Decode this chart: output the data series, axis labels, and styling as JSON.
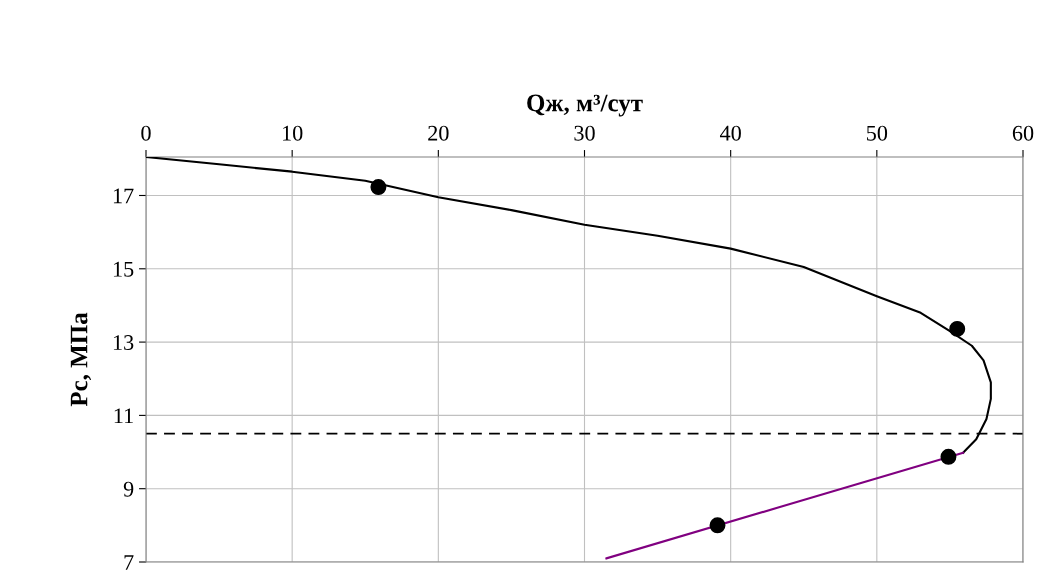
{
  "chart_data": {
    "type": "line",
    "xlabel": "Qж, м³/сут",
    "ylabel": "Pс, МПа",
    "xlim": [
      0,
      60
    ],
    "xticks": [
      0,
      10,
      20,
      30,
      40,
      50,
      60
    ],
    "ylim": [
      7,
      18.05
    ],
    "yticks": [
      7,
      9,
      11,
      13,
      15,
      17
    ],
    "grid": true,
    "marker": "none",
    "line_style": "solid",
    "legend": false,
    "series": [
      {
        "color": "#000000",
        "x": [
          0,
          5,
          10,
          15,
          20,
          25,
          30,
          35,
          40,
          45,
          50,
          53,
          55,
          56.5,
          57.3,
          57.8,
          57.8,
          57.5,
          56.8,
          55.9
        ],
        "values": [
          18.05,
          17.85,
          17.65,
          17.4,
          16.95,
          16.6,
          16.2,
          15.9,
          15.55,
          15.05,
          14.25,
          13.8,
          13.3,
          12.9,
          12.5,
          11.9,
          11.45,
          10.9,
          10.35,
          9.98
        ]
      },
      {
        "color": "#800080",
        "x": [
          31.5,
          55.9
        ],
        "values": [
          7.1,
          9.98
        ]
      },
      {
        "type": "scatter",
        "color": "#000000",
        "marker": "circle",
        "x": [
          15.9,
          55.5,
          54.9,
          39.1
        ],
        "values": [
          17.23,
          13.36,
          9.87,
          8.0
        ]
      }
    ],
    "ref_lines": [
      {
        "axis": "y",
        "value": 10.5,
        "color": "#000000",
        "line_style": "dashed"
      }
    ]
  }
}
